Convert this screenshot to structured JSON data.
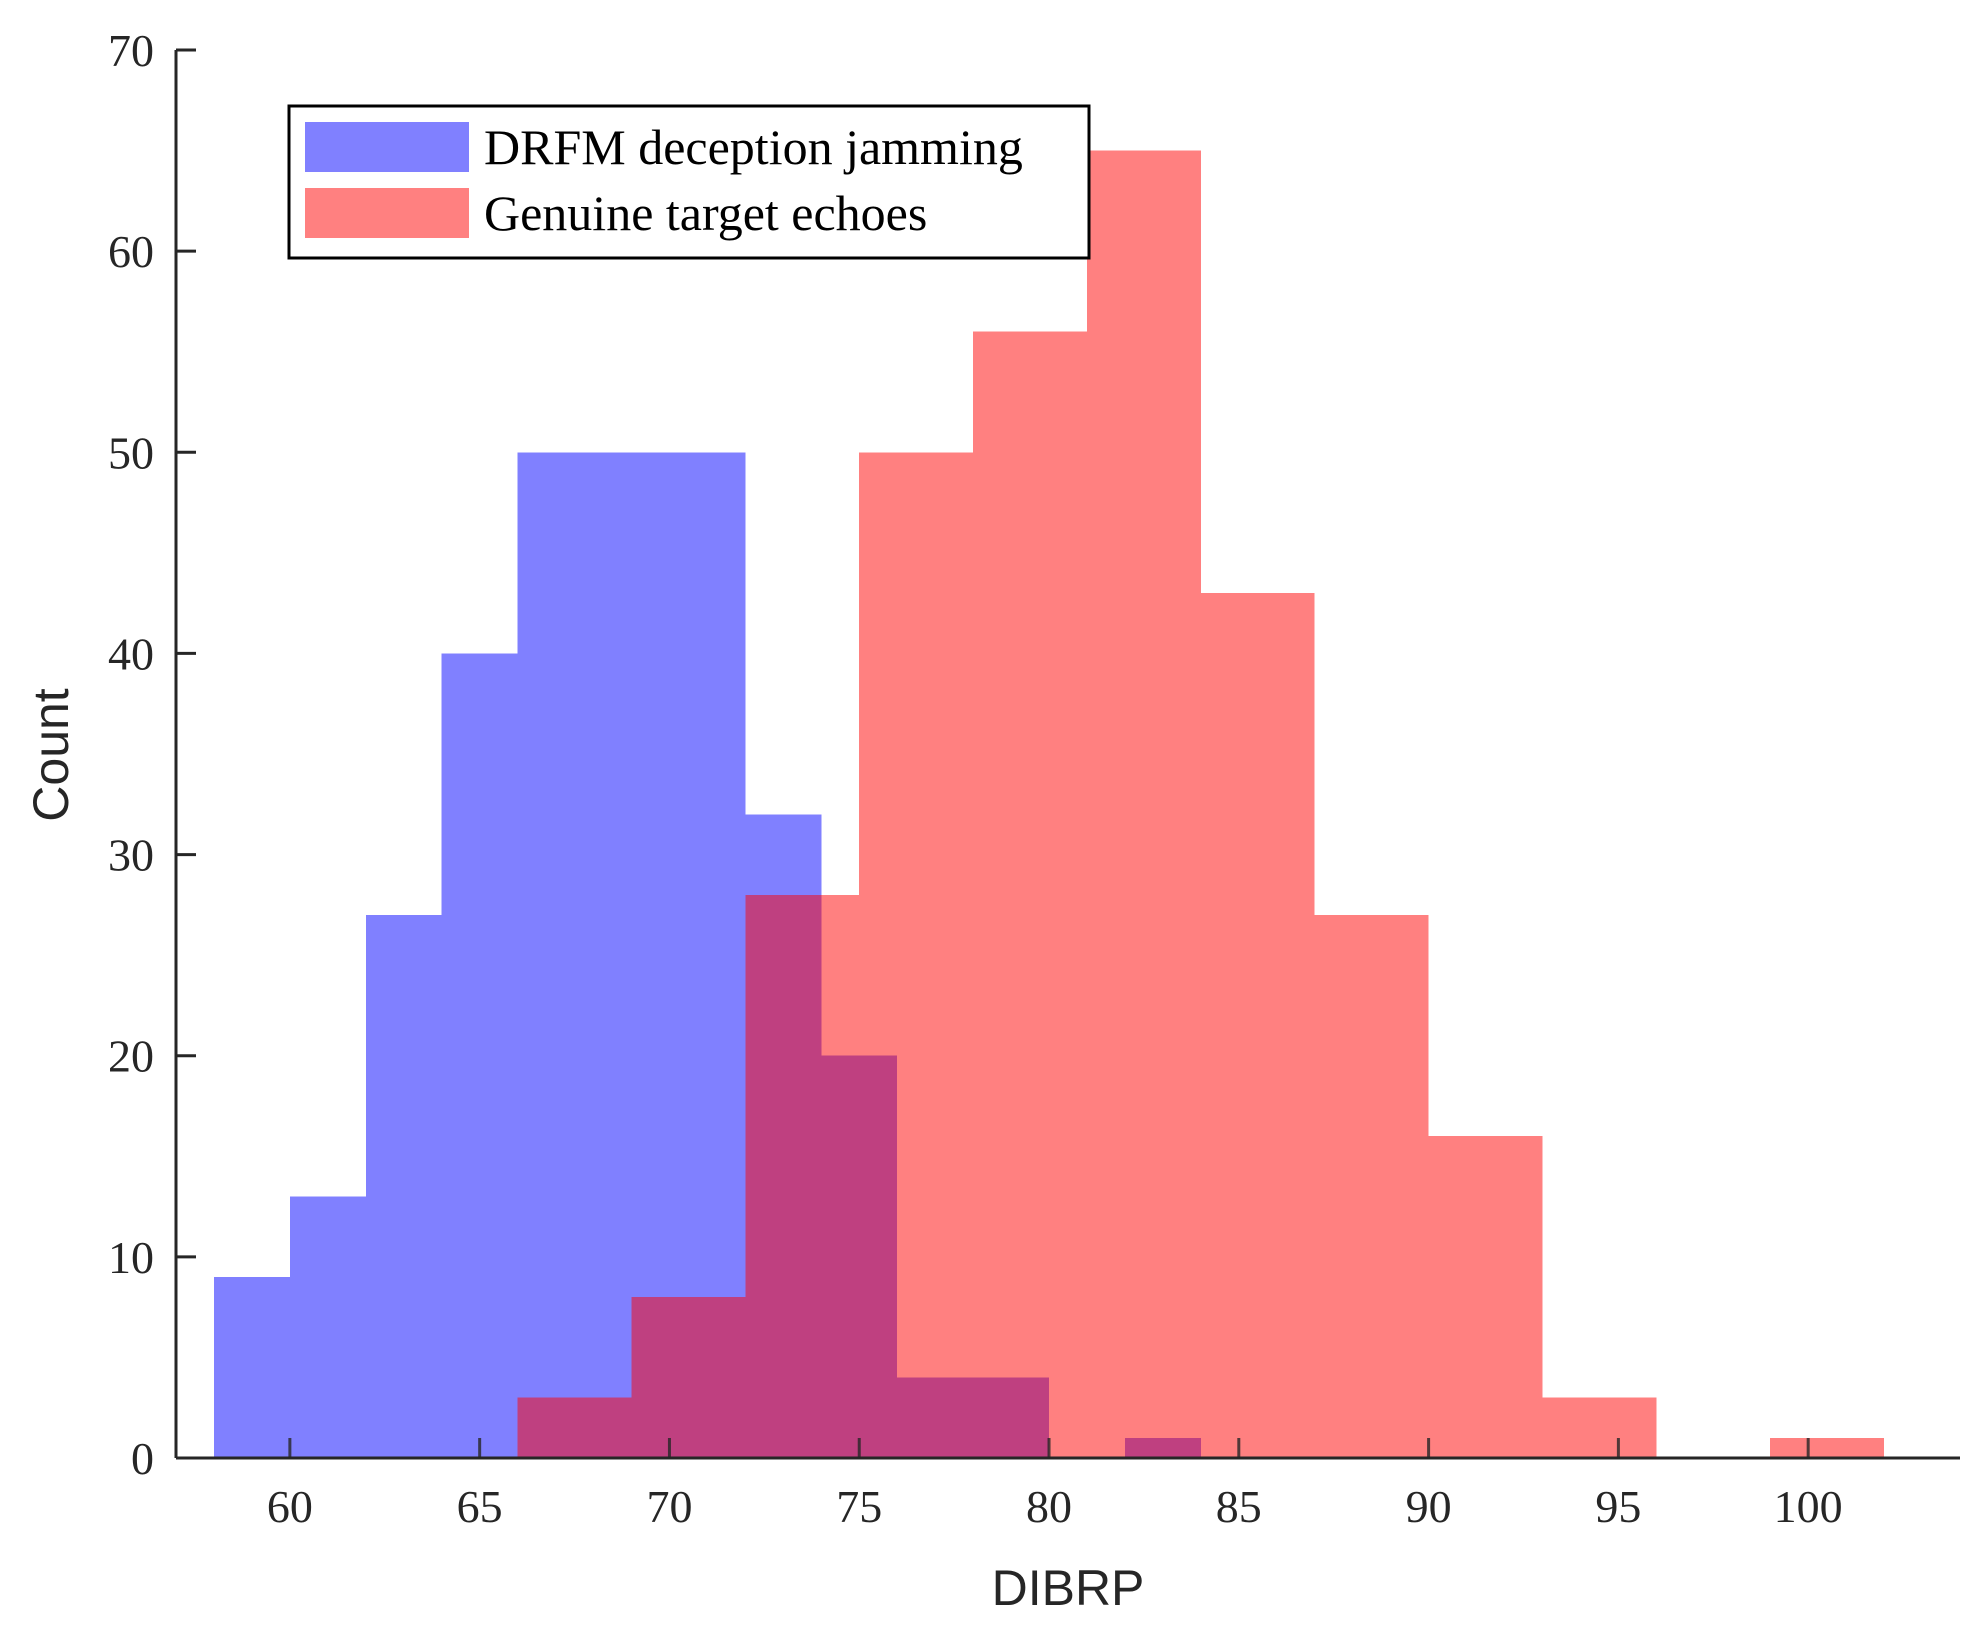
{
  "chart_data": {
    "type": "bar",
    "title": "",
    "xlabel": "DIBRP",
    "ylabel": "Count",
    "xlim": [
      57,
      104
    ],
    "ylim": [
      0,
      70
    ],
    "xticks": [
      60,
      65,
      70,
      75,
      80,
      85,
      90,
      95,
      100
    ],
    "yticks": [
      0,
      10,
      20,
      30,
      40,
      50,
      60,
      70
    ],
    "grid": false,
    "legend_position": "top-left",
    "series": [
      {
        "name": "DRFM deception jamming",
        "color": "#8080ff",
        "bin_edges": [
          58,
          60,
          62,
          64,
          66,
          68,
          70,
          72,
          74,
          76,
          78,
          80,
          82,
          84
        ],
        "counts": [
          9,
          13,
          27,
          40,
          50,
          50,
          50,
          32,
          20,
          4,
          4,
          0,
          1
        ]
      },
      {
        "name": "Genuine target echoes",
        "color": "#ff8080",
        "bin_edges": [
          66,
          69,
          72,
          75,
          78,
          81,
          84,
          87,
          90,
          93,
          96,
          99,
          102
        ],
        "counts": [
          3,
          8,
          28,
          50,
          56,
          65,
          43,
          27,
          16,
          3,
          0,
          1
        ]
      }
    ],
    "overlap_color": "#bf4080"
  }
}
